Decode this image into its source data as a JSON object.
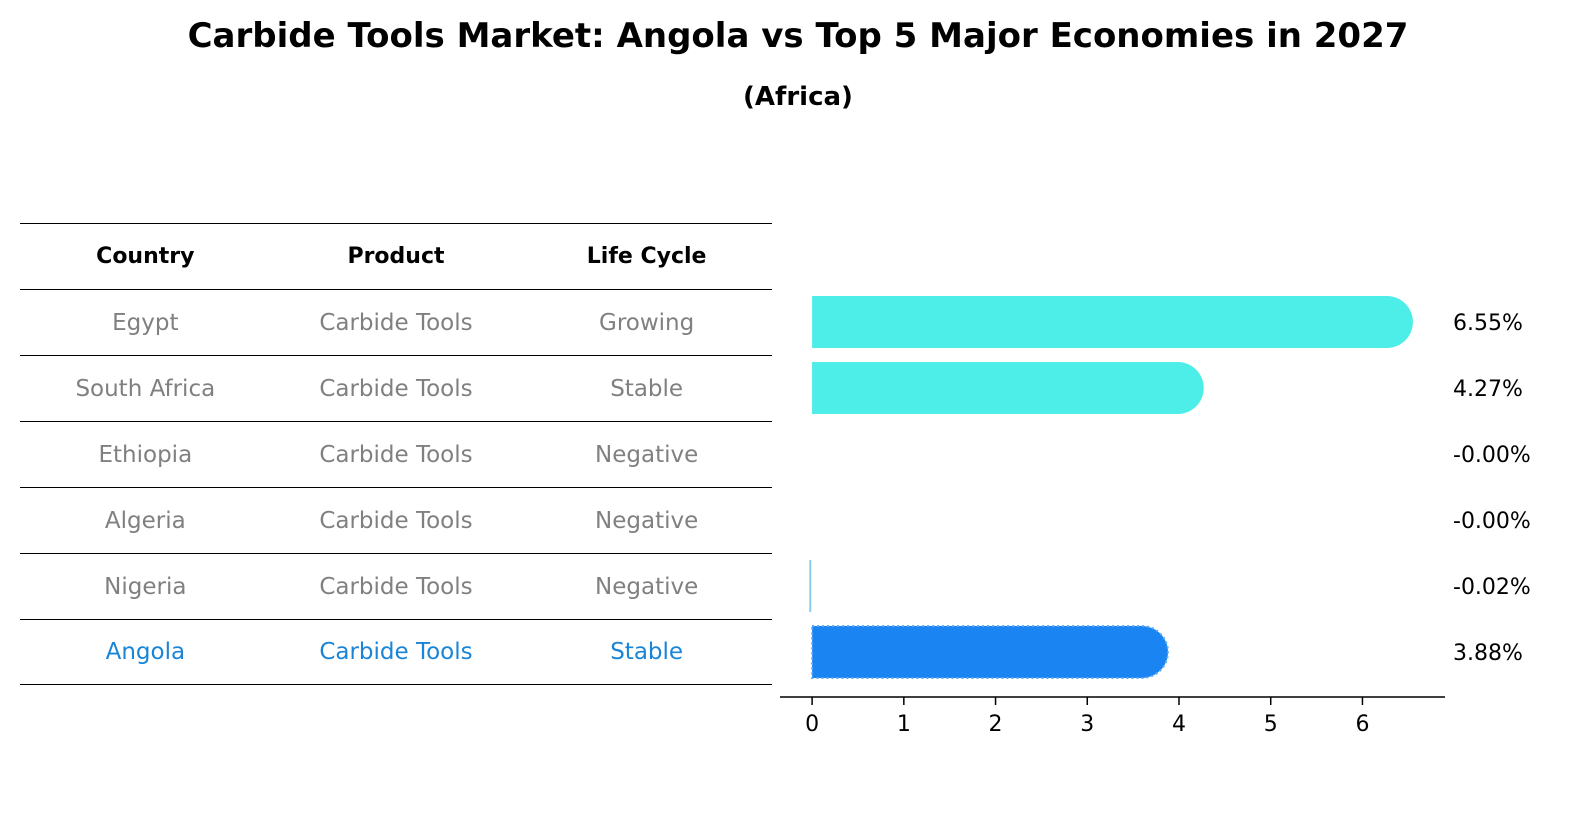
{
  "title": "Carbide Tools Market: Angola vs Top 5 Major Economies in 2027",
  "subtitle": "(Africa)",
  "table": {
    "headers": [
      "Country",
      "Product",
      "Life Cycle"
    ],
    "rows": [
      {
        "country": "Egypt",
        "product": "Carbide Tools",
        "life_cycle": "Growing"
      },
      {
        "country": "South Africa",
        "product": "Carbide Tools",
        "life_cycle": "Stable"
      },
      {
        "country": "Ethiopia",
        "product": "Carbide Tools",
        "life_cycle": "Negative"
      },
      {
        "country": "Algeria",
        "product": "Carbide Tools",
        "life_cycle": "Negative"
      },
      {
        "country": "Nigeria",
        "product": "Carbide Tools",
        "life_cycle": "Negative"
      },
      {
        "country": "Angola",
        "product": "Carbide Tools",
        "life_cycle": "Stable"
      }
    ],
    "highlight_color": "#1a85d6",
    "text_color": "#808080"
  },
  "chart_data": {
    "type": "bar",
    "orientation": "horizontal",
    "categories": [
      "Egypt",
      "South Africa",
      "Ethiopia",
      "Algeria",
      "Nigeria",
      "Angola"
    ],
    "values": [
      6.55,
      4.27,
      -0.0,
      -0.0,
      -0.02,
      3.88
    ],
    "labels": [
      "6.55%",
      "4.27%",
      "-0.00%",
      "-0.00%",
      "-0.02%",
      "3.88%"
    ],
    "colors": [
      "#4dede8",
      "#4dede8",
      "#4dede8",
      "#4dede8",
      "#87ceeb",
      "#1a85f2"
    ],
    "xlim": [
      -0.35,
      6.9
    ],
    "xticks": [
      0,
      1,
      2,
      3,
      4,
      5,
      6
    ],
    "grid": false
  }
}
